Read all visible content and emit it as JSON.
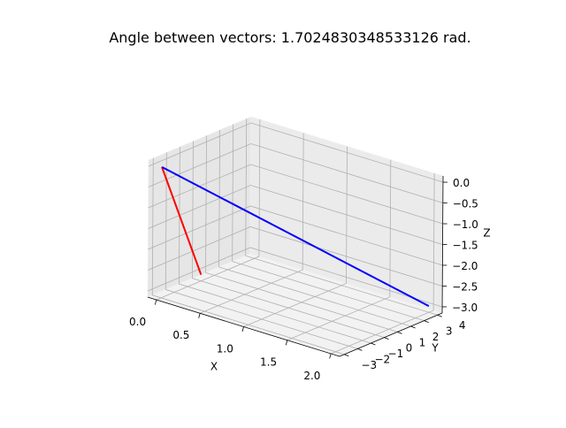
{
  "chart_data": {
    "type": "line",
    "projection": "3d",
    "title": "Angle between vectors: 1.7024830348533126 rad.",
    "xlabel": "X",
    "ylabel": "Y",
    "zlabel": "Z",
    "xlim": [
      -0.1,
      2.1
    ],
    "ylim": [
      -3.35,
      4.35
    ],
    "zlim": [
      -3.15,
      0.15
    ],
    "x_ticks": [
      0.0,
      0.5,
      1.0,
      1.5,
      2.0
    ],
    "x_tick_labels": [
      "0.0",
      "0.5",
      "1.0",
      "1.5",
      "2.0"
    ],
    "y_ticks": [
      -3,
      -2,
      -1,
      0,
      1,
      2,
      3,
      4
    ],
    "y_tick_labels": [
      "−3",
      "−2",
      "−1",
      "0",
      "1",
      "2",
      "3",
      "4"
    ],
    "z_ticks": [
      -3.0,
      -2.5,
      -2.0,
      -1.5,
      -1.0,
      -0.5,
      0.0
    ],
    "z_tick_labels": [
      "−3.0",
      "−2.5",
      "−2.0",
      "−1.5",
      "−1.0",
      "−0.5",
      "0.0"
    ],
    "grid": true,
    "series": [
      {
        "color": "#ff0000",
        "points": [
          [
            0,
            0,
            -3
          ],
          [
            0,
            -3,
            0
          ]
        ]
      },
      {
        "color": "#0000ff",
        "points": [
          [
            0,
            -3,
            0
          ],
          [
            2,
            4,
            -3
          ]
        ]
      }
    ]
  }
}
